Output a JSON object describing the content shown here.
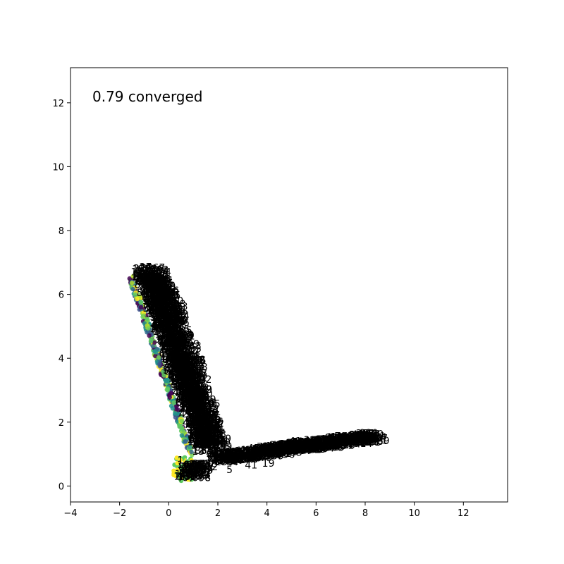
{
  "chart_data": {
    "type": "scatter",
    "title": "",
    "xlabel": "",
    "ylabel": "",
    "xlim": [
      -4.0,
      13.8
    ],
    "ylim": [
      -0.5,
      13.1
    ],
    "x_ticks": [
      -4,
      -2,
      0,
      2,
      4,
      6,
      8,
      10,
      12
    ],
    "y_ticks": [
      0,
      2,
      4,
      6,
      8,
      10,
      12
    ],
    "annotation": "0.79 converged",
    "grid": false,
    "legend": "none",
    "point_colors": [
      "#440154",
      "#3b528b",
      "#21918c",
      "#5ec962",
      "#b5de2b",
      "#fde725",
      "#31688e",
      "#73d055"
    ],
    "cluster_upper_arm": {
      "from": [
        -1.55,
        6.55
      ],
      "to": [
        0.9,
        1.0
      ],
      "label_offset": [
        0.55,
        0.0
      ]
    },
    "cluster_lower_arm": {
      "from": [
        1.5,
        0.75
      ],
      "to": [
        8.0,
        1.45
      ]
    },
    "cluster_bottom": {
      "from": [
        0.2,
        0.15
      ],
      "to": [
        1.0,
        0.9
      ]
    },
    "visible_point_labels": [
      {
        "text": "1568",
        "x": -1.55,
        "y": 6.6
      },
      {
        "text": "1566",
        "x": -1.5,
        "y": 6.45
      },
      {
        "text": "4",
        "x": 0.05,
        "y": 4.85
      },
      {
        "text": "3",
        "x": 0.1,
        "y": 4.55
      },
      {
        "text": "41",
        "x": 1.6,
        "y": 1.25
      },
      {
        "text": "1",
        "x": 0.35,
        "y": 0.7
      },
      {
        "text": "5",
        "x": 2.35,
        "y": 0.4
      },
      {
        "text": "41",
        "x": 3.1,
        "y": 0.55
      },
      {
        "text": "19",
        "x": 3.8,
        "y": 0.6
      },
      {
        "text": "41",
        "x": 4.9,
        "y": 1.3
      },
      {
        "text": "4/5",
        "x": 4.0,
        "y": 1.15
      },
      {
        "text": "77",
        "x": 6.3,
        "y": 1.35
      },
      {
        "text": "5",
        "x": 7.5,
        "y": 1.4
      },
      {
        "text": "2",
        "x": 7.6,
        "y": 1.35
      },
      {
        "text": "12",
        "x": 7.9,
        "y": 1.4
      },
      {
        "text": "098",
        "x": 0.95,
        "y": 0.15
      },
      {
        "text": "1",
        "x": 0.2,
        "y": 0.2
      }
    ]
  }
}
